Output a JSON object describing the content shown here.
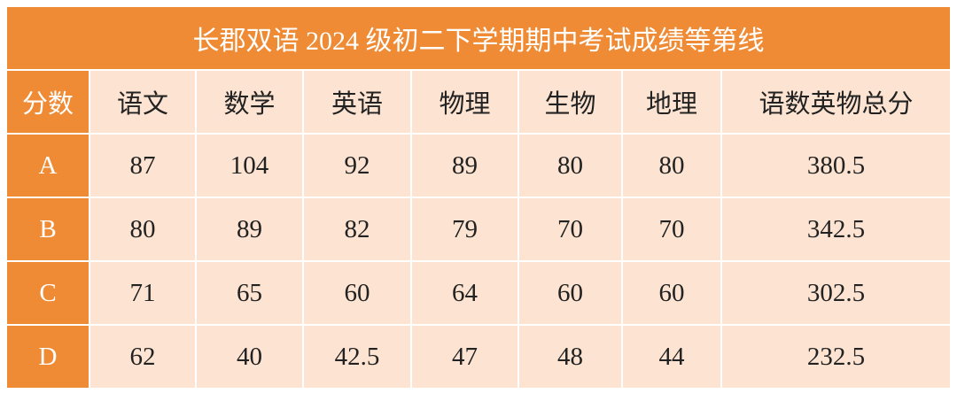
{
  "title": "长郡双语 2024 级初二下学期期中考试成绩等第线",
  "table": {
    "header": [
      "分数",
      "语文",
      "数学",
      "英语",
      "物理",
      "生物",
      "地理",
      "语数英物总分"
    ],
    "rows": [
      [
        "A",
        87,
        104,
        92,
        89,
        80,
        80,
        380.5
      ],
      [
        "B",
        80,
        89,
        82,
        79,
        70,
        70,
        342.5
      ],
      [
        "C",
        71,
        65,
        60,
        64,
        60,
        60,
        302.5
      ],
      [
        "D",
        62,
        40,
        42.5,
        47,
        48,
        44,
        232.5
      ]
    ]
  }
}
